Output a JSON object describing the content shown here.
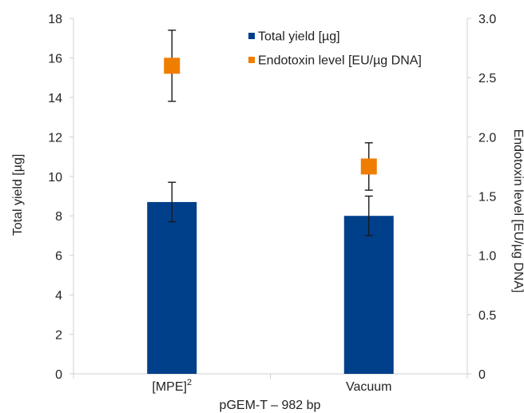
{
  "chart_data": {
    "type": "bar",
    "categories": [
      "[MPE]",
      "Vacuum"
    ],
    "category_superscripts": [
      "2",
      ""
    ],
    "xlabel": "pGEM-T – 982 bp",
    "ylabel": "Total yield [µg]",
    "y2label": "Endotoxin level [EU/µg DNA]",
    "ylim": [
      0,
      18
    ],
    "y2lim": [
      0,
      3.0
    ],
    "yticks": [
      "0",
      "2",
      "4",
      "6",
      "8",
      "10",
      "12",
      "14",
      "16",
      "18"
    ],
    "y2ticks": [
      "0",
      "0.5",
      "1.0",
      "1.5",
      "2.0",
      "2.5",
      "3.0"
    ],
    "grid": false,
    "legend_position": "top-right",
    "series": [
      {
        "name": "Total yield [µg]",
        "kind": "bar",
        "axis": "left",
        "color": "#003f8a",
        "values": [
          8.7,
          8.0
        ],
        "errors": [
          1.0,
          1.0
        ]
      },
      {
        "name": "Endotoxin level [EU/µg DNA]",
        "kind": "marker",
        "axis": "right",
        "color": "#ef7d00",
        "values": [
          2.6,
          1.75
        ],
        "errors": [
          0.3,
          0.2
        ]
      }
    ]
  }
}
